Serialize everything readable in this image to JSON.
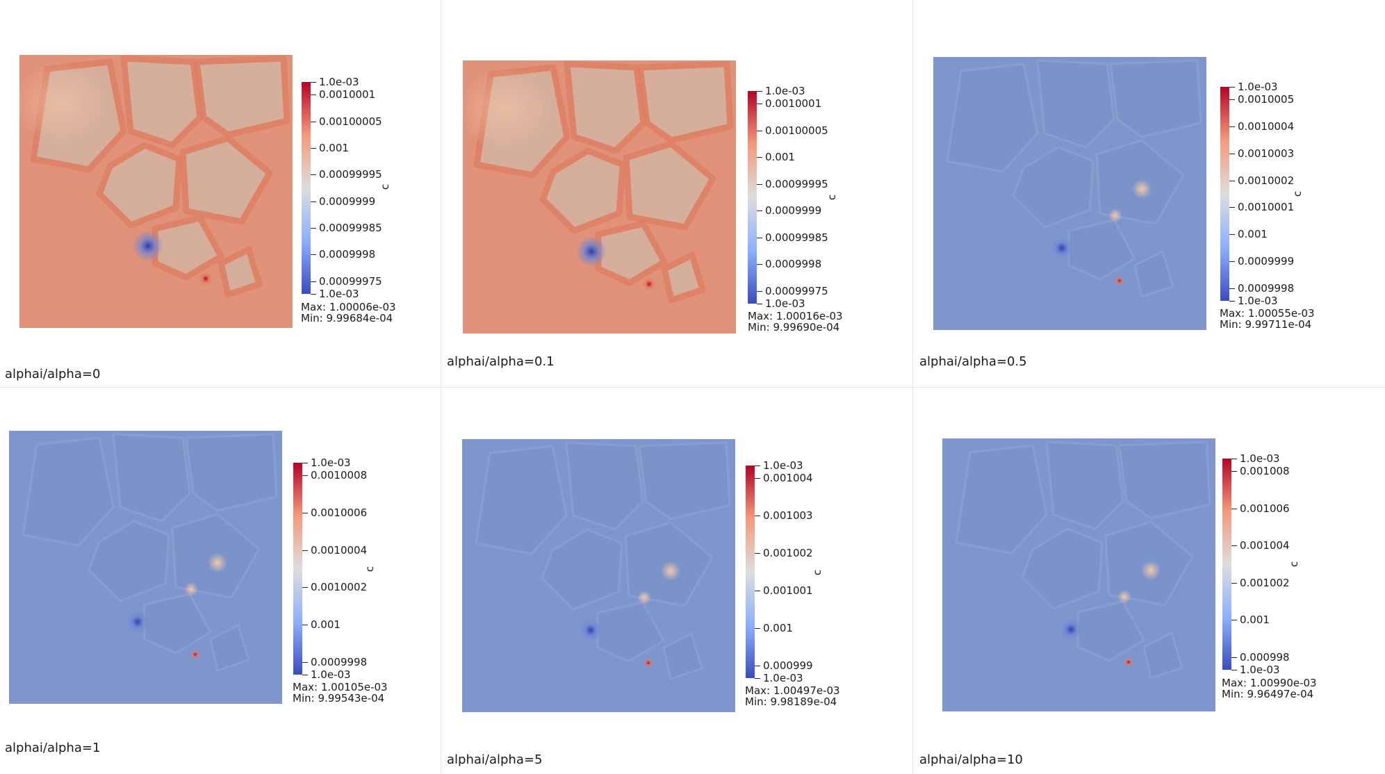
{
  "layout_palette": {
    "blue_low": "#3b4cc0",
    "neutral": "#dddddd",
    "red_high": "#b40426",
    "field_red": "#e0927a",
    "field_blue": "#7f96cc"
  },
  "panels": [
    {
      "id": "p0",
      "caption": "alphai/alpha=0",
      "axis_title": "c",
      "field_tone": "red",
      "top_label": "1.0e-03",
      "bottom_label": "1.0e-03",
      "ticks": [
        "0.0010001",
        "0.00100005",
        "0.001",
        "0.00099995",
        "0.0009999",
        "0.00099985",
        "0.0009998",
        "0.00099975"
      ],
      "max": "Max: 1.00006e-03",
      "min": "Min: 9.99684e-04"
    },
    {
      "id": "p1",
      "caption": "alphai/alpha=0.1",
      "axis_title": "c",
      "field_tone": "red",
      "top_label": "1.0e-03",
      "bottom_label": "1.0e-03",
      "ticks": [
        "0.0010001",
        "0.00100005",
        "0.001",
        "0.00099995",
        "0.0009999",
        "0.00099985",
        "0.0009998",
        "0.00099975"
      ],
      "max": "Max: 1.00016e-03",
      "min": "Min: 9.99690e-04"
    },
    {
      "id": "p2",
      "caption": "alphai/alpha=0.5",
      "axis_title": "c",
      "field_tone": "blue",
      "top_label": "1.0e-03",
      "bottom_label": "1.0e-03",
      "ticks": [
        "0.0010005",
        "0.0010004",
        "0.0010003",
        "0.0010002",
        "0.0010001",
        "0.001",
        "0.0009999",
        "0.0009998"
      ],
      "max": "Max: 1.00055e-03",
      "min": "Min: 9.99711e-04"
    },
    {
      "id": "p3",
      "caption": "alphai/alpha=1",
      "axis_title": "c",
      "field_tone": "blue",
      "top_label": "1.0e-03",
      "bottom_label": "1.0e-03",
      "ticks": [
        "0.0010008",
        "0.0010006",
        "0.0010004",
        "0.0010002",
        "0.001",
        "0.0009998"
      ],
      "max": "Max: 1.00105e-03",
      "min": "Min: 9.99543e-04"
    },
    {
      "id": "p4",
      "caption": "alphai/alpha=5",
      "axis_title": "c",
      "field_tone": "blue",
      "top_label": "1.0e-03",
      "bottom_label": "1.0e-03",
      "ticks": [
        "0.001004",
        "0.001003",
        "0.001002",
        "0.001001",
        "0.001",
        "0.000999"
      ],
      "max": "Max: 1.00497e-03",
      "min": "Min: 9.98189e-04"
    },
    {
      "id": "p5",
      "caption": "alphai/alpha=10",
      "axis_title": "c",
      "field_tone": "blue",
      "top_label": "1.0e-03",
      "bottom_label": "1.0e-03",
      "ticks": [
        "0.001008",
        "0.001006",
        "0.001004",
        "0.001002",
        "0.001",
        "0.000998"
      ],
      "max": "Max: 1.00990e-03",
      "min": "Min: 9.96497e-04"
    }
  ]
}
